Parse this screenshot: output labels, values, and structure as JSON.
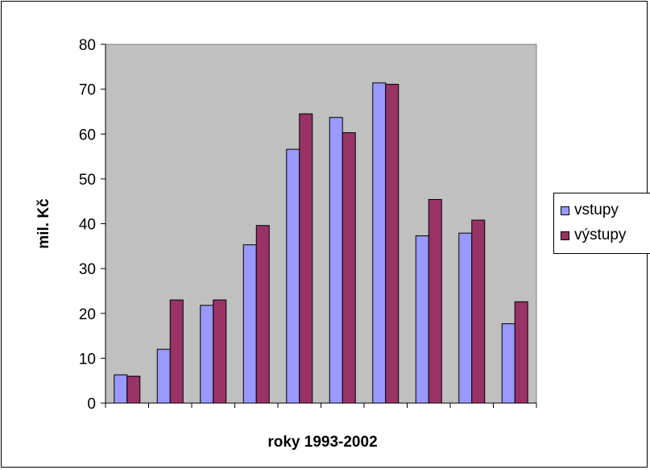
{
  "chart_data": {
    "type": "bar",
    "title": "",
    "xlabel": "roky 1993-2002",
    "ylabel": "mil. Kč",
    "categories": [
      "",
      "",
      "",
      "",
      "",
      "",
      "",
      "",
      "",
      ""
    ],
    "ylim": [
      0,
      80
    ],
    "yticks": [
      "0",
      "10",
      "20",
      "30",
      "40",
      "50",
      "60",
      "70",
      "80"
    ],
    "grid": false,
    "legend_position": "right",
    "plot_background": "#c0c0c0",
    "series": [
      {
        "name": "vstupy",
        "color": "#9999ff",
        "values": [
          6.3,
          12,
          21.8,
          35.3,
          56.6,
          63.7,
          71.4,
          37.3,
          37.9,
          17.7
        ]
      },
      {
        "name": "výstupy",
        "color": "#993366",
        "values": [
          6,
          23,
          23,
          39.6,
          64.5,
          60.3,
          71.1,
          45.4,
          40.8,
          22.6
        ]
      }
    ]
  }
}
